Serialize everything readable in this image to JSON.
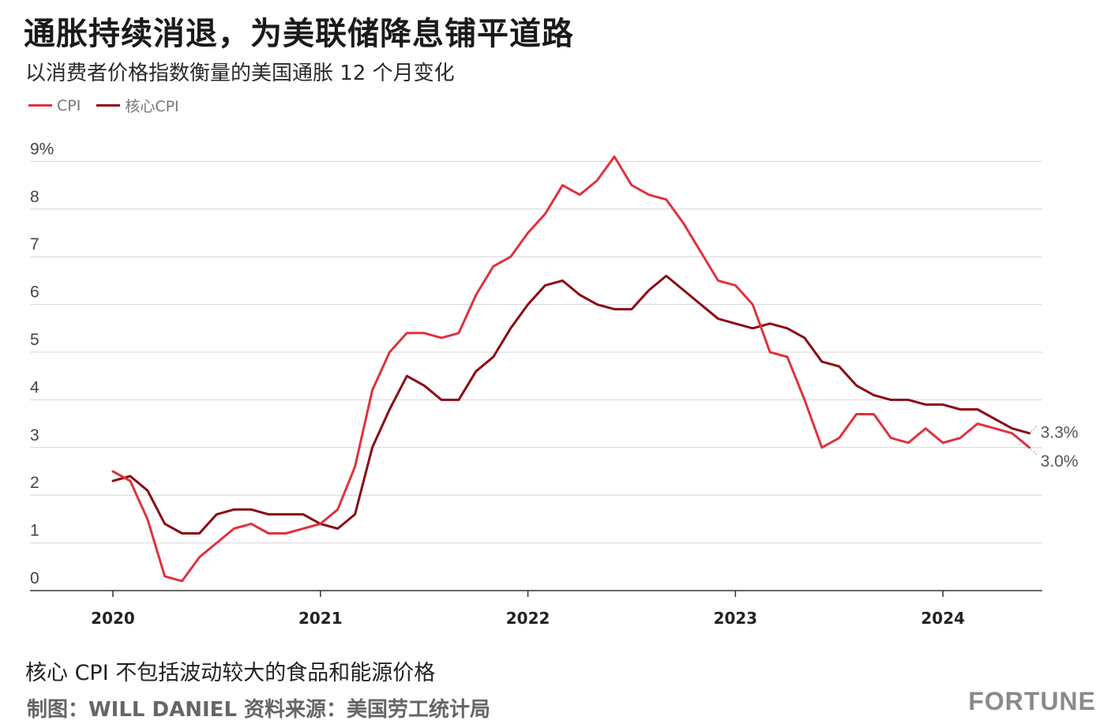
{
  "header": {
    "title": "通胀持续消退，为美联储降息铺平道路",
    "subtitle": "以消费者价格指数衡量的美国通胀 12 个月变化"
  },
  "footer": {
    "note": "核心 CPI 不包括波动较大的食品和能源价格",
    "credit": "制图：WILL DANIEL 资料来源：美国劳工统计局",
    "brand": "FORTUNE"
  },
  "colors": {
    "cpi": "#e0323c",
    "core": "#8b0a14",
    "grid": "#d4d4d4",
    "axis": "#333333"
  },
  "chart_data": {
    "type": "line",
    "title": "通胀持续消退，为美联储降息铺平道路",
    "subtitle": "以消费者价格指数衡量的美国通胀 12 个月变化",
    "y_tick_labels": [
      "0",
      "1",
      "2",
      "3",
      "4",
      "5",
      "6",
      "7",
      "8",
      "9%"
    ],
    "x_tick_labels": [
      "2020",
      "2021",
      "2022",
      "2023",
      "2024"
    ],
    "ylim": [
      0,
      9
    ],
    "legend_position": "top-left",
    "grid": "horizontal",
    "end_labels": {
      "cpi": "3.0%",
      "core": "3.3%"
    },
    "x": [
      "2020-01",
      "2020-02",
      "2020-03",
      "2020-04",
      "2020-05",
      "2020-06",
      "2020-07",
      "2020-08",
      "2020-09",
      "2020-10",
      "2020-11",
      "2020-12",
      "2021-01",
      "2021-02",
      "2021-03",
      "2021-04",
      "2021-05",
      "2021-06",
      "2021-07",
      "2021-08",
      "2021-09",
      "2021-10",
      "2021-11",
      "2021-12",
      "2022-01",
      "2022-02",
      "2022-03",
      "2022-04",
      "2022-05",
      "2022-06",
      "2022-07",
      "2022-08",
      "2022-09",
      "2022-10",
      "2022-11",
      "2022-12",
      "2023-01",
      "2023-02",
      "2023-03",
      "2023-04",
      "2023-05",
      "2023-06",
      "2023-07",
      "2023-08",
      "2023-09",
      "2023-10",
      "2023-11",
      "2023-12",
      "2024-01",
      "2024-02",
      "2024-03",
      "2024-04",
      "2024-05",
      "2024-06"
    ],
    "series": [
      {
        "name": "CPI",
        "key": "cpi",
        "values": [
          2.5,
          2.3,
          1.5,
          0.3,
          0.2,
          0.7,
          1.0,
          1.3,
          1.4,
          1.2,
          1.2,
          1.3,
          1.4,
          1.7,
          2.6,
          4.2,
          5.0,
          5.4,
          5.4,
          5.3,
          5.4,
          6.2,
          6.8,
          7.0,
          7.5,
          7.9,
          8.5,
          8.3,
          8.6,
          9.1,
          8.5,
          8.3,
          8.2,
          7.7,
          7.1,
          6.5,
          6.4,
          6.0,
          5.0,
          4.9,
          4.0,
          3.0,
          3.2,
          3.7,
          3.7,
          3.2,
          3.1,
          3.4,
          3.1,
          3.2,
          3.5,
          3.4,
          3.3,
          3.0
        ]
      },
      {
        "name": "核心CPI",
        "key": "core",
        "values": [
          2.3,
          2.4,
          2.1,
          1.4,
          1.2,
          1.2,
          1.6,
          1.7,
          1.7,
          1.6,
          1.6,
          1.6,
          1.4,
          1.3,
          1.6,
          3.0,
          3.8,
          4.5,
          4.3,
          4.0,
          4.0,
          4.6,
          4.9,
          5.5,
          6.0,
          6.4,
          6.5,
          6.2,
          6.0,
          5.9,
          5.9,
          6.3,
          6.6,
          6.3,
          6.0,
          5.7,
          5.6,
          5.5,
          5.6,
          5.5,
          5.3,
          4.8,
          4.7,
          4.3,
          4.1,
          4.0,
          4.0,
          3.9,
          3.9,
          3.8,
          3.8,
          3.6,
          3.4,
          3.3
        ]
      }
    ]
  }
}
